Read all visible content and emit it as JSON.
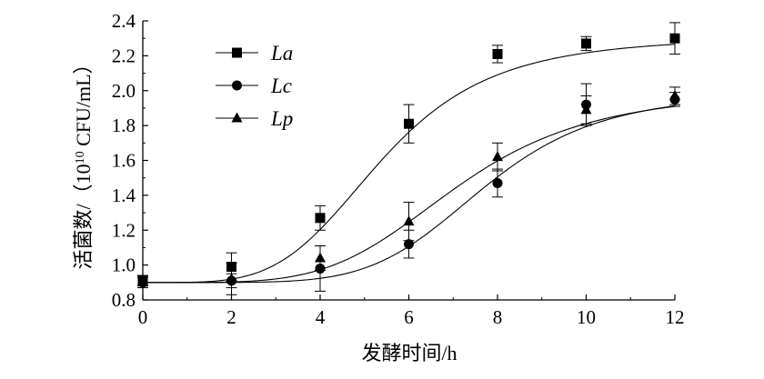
{
  "chart_data": {
    "type": "line",
    "xlabel": "发酵时间/h",
    "ylabel_main": "活菌数/（10",
    "ylabel_sup": "10",
    "ylabel_tail": " CFU/mL）",
    "xlim": [
      0,
      12
    ],
    "ylim": [
      0.8,
      2.4
    ],
    "x_ticks": [
      "0",
      "2",
      "4",
      "6",
      "8",
      "10",
      "12"
    ],
    "y_ticks": [
      "0.8",
      "1.0",
      "1.2",
      "1.4",
      "1.6",
      "1.8",
      "2.0",
      "2.2",
      "2.4"
    ],
    "grid": false,
    "legend_position": "top-left",
    "x": [
      0,
      2,
      4,
      6,
      8,
      10,
      12
    ],
    "series": [
      {
        "name": "La",
        "marker": "square",
        "values": [
          0.91,
          0.99,
          1.27,
          1.81,
          2.21,
          2.27,
          2.3
        ],
        "errors": [
          0.03,
          0.08,
          0.07,
          0.11,
          0.05,
          0.04,
          0.09
        ]
      },
      {
        "name": "Lc",
        "marker": "circle",
        "values": [
          0.9,
          0.91,
          0.98,
          1.12,
          1.47,
          1.92,
          1.95
        ],
        "errors": [
          0.03,
          0.04,
          0.13,
          0.08,
          0.08,
          0.12,
          0.04
        ]
      },
      {
        "name": "Lp",
        "marker": "triangle",
        "values": [
          0.91,
          0.92,
          1.04,
          1.25,
          1.62,
          1.89,
          1.97
        ],
        "errors": [
          0.03,
          0.09,
          0.07,
          0.11,
          0.08,
          0.08,
          0.05
        ]
      }
    ]
  }
}
